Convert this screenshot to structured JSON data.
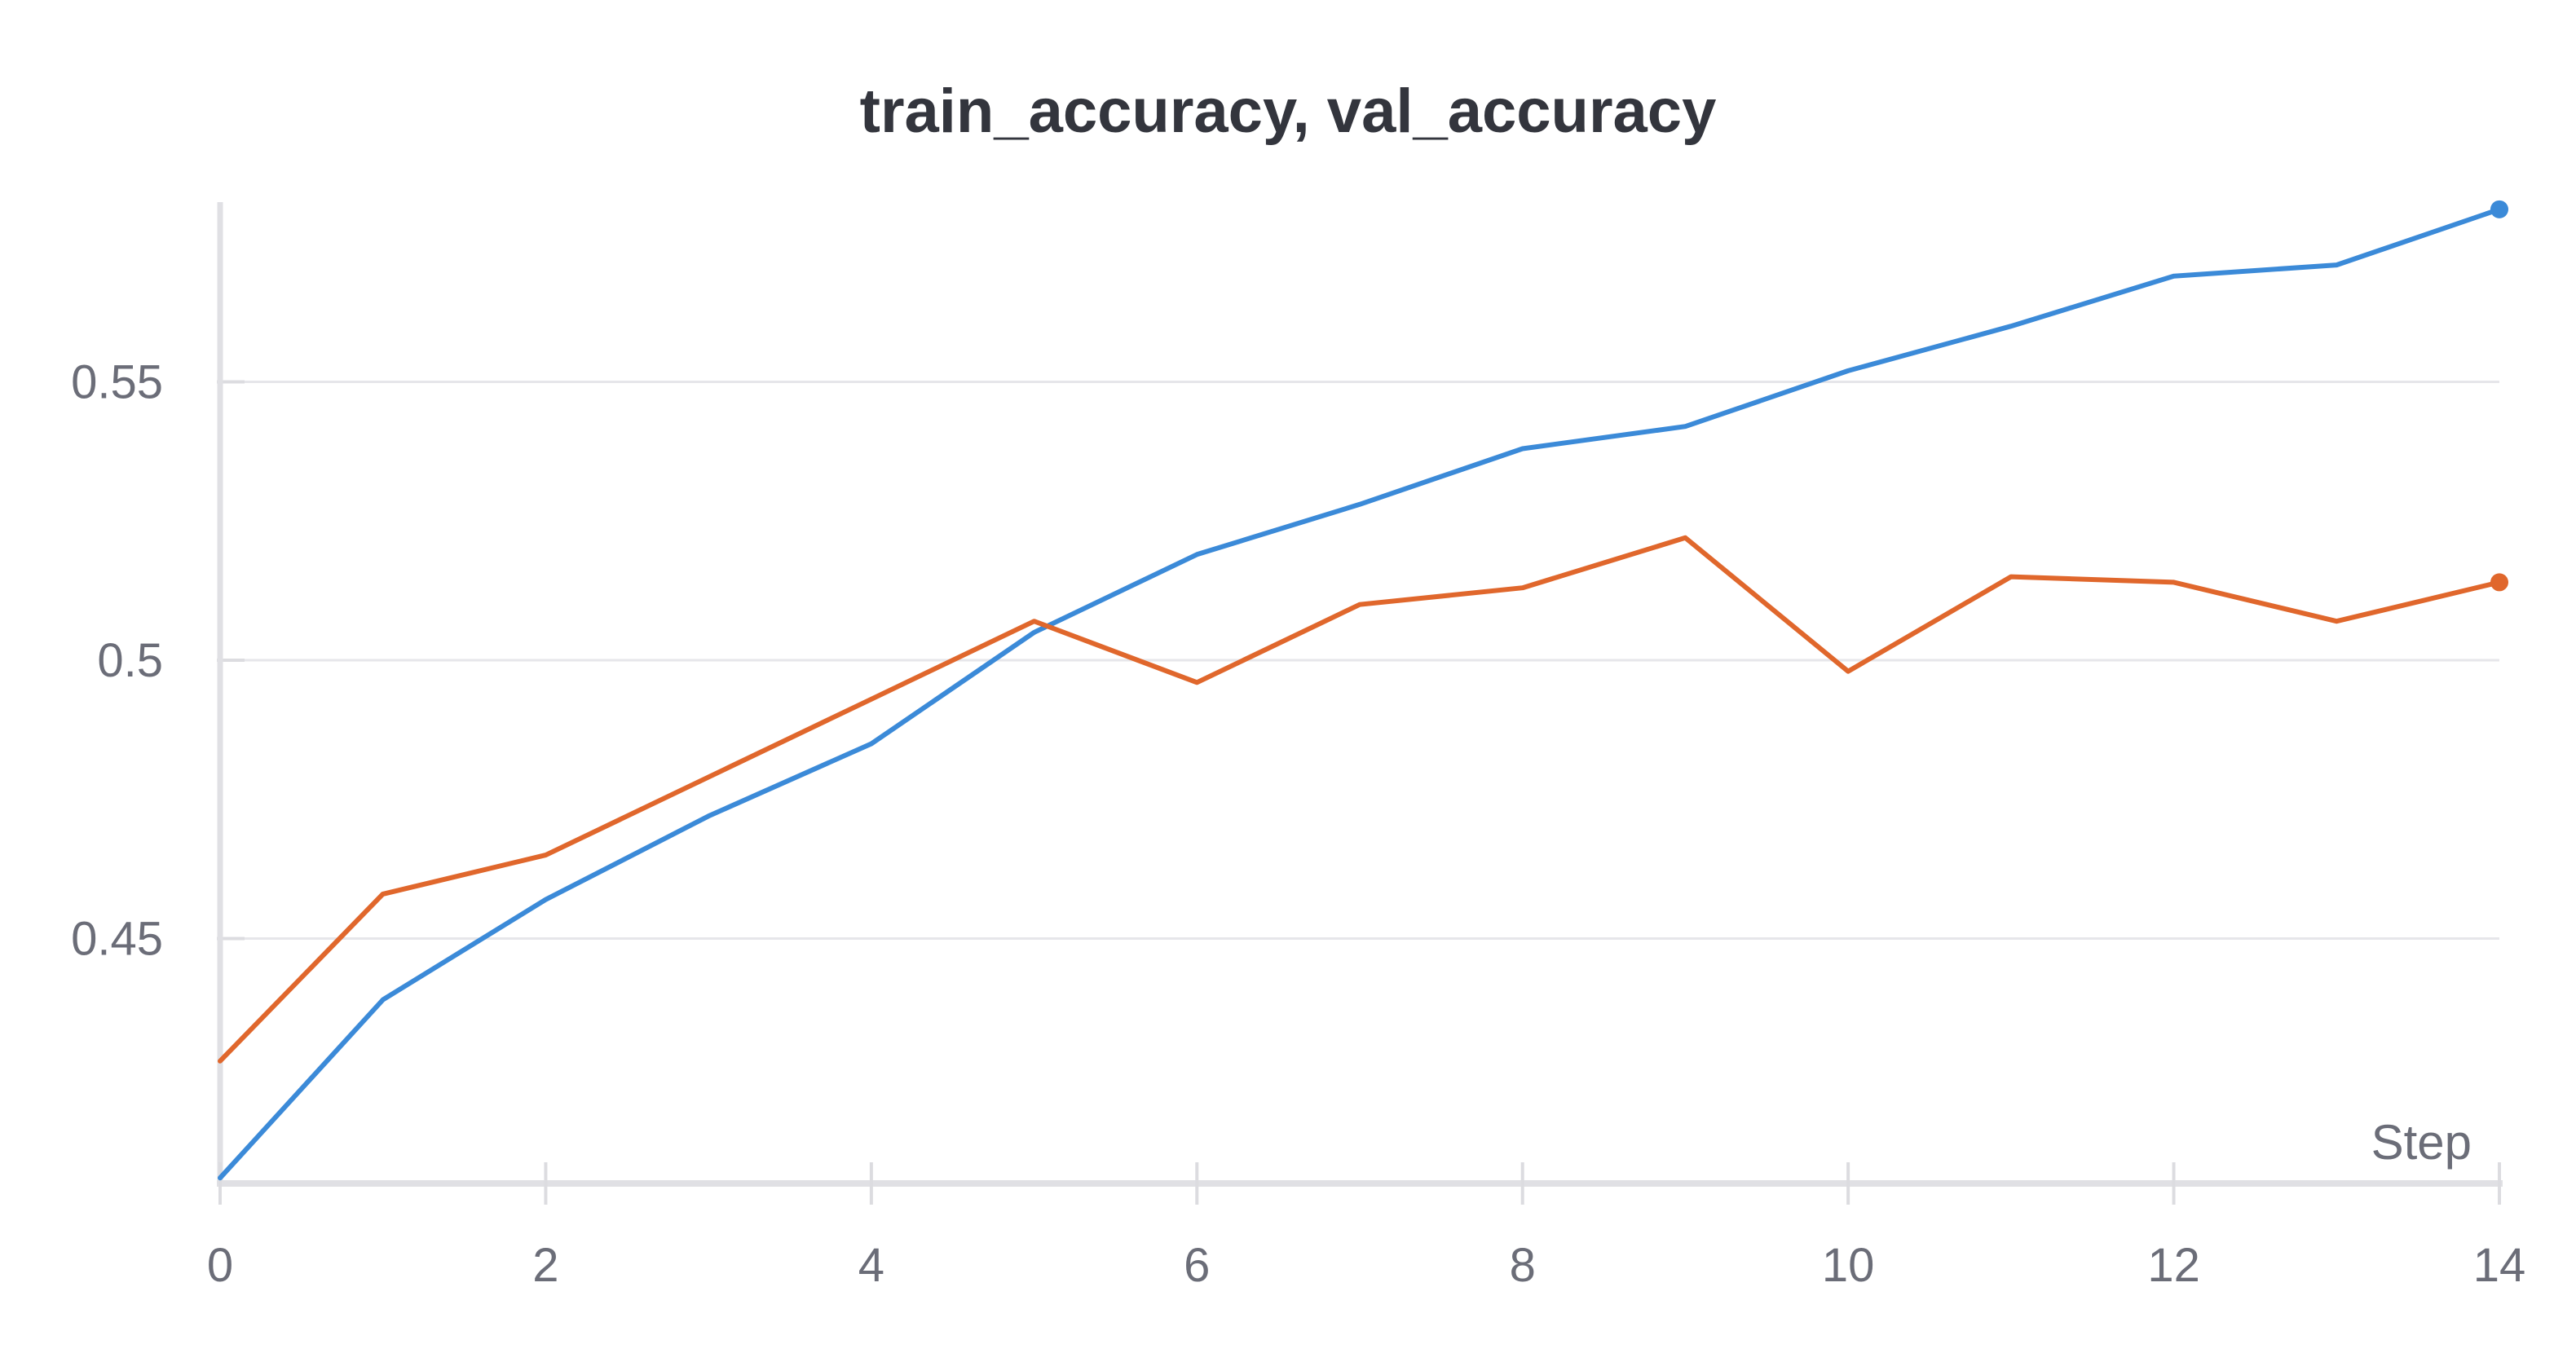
{
  "chart_data": {
    "type": "line",
    "title": "train_accuracy, val_accuracy",
    "xlabel": "Step",
    "ylabel": "",
    "xlim": [
      0,
      14
    ],
    "ylim": [
      0.406,
      0.582
    ],
    "x_ticks": [
      0,
      2,
      4,
      6,
      8,
      10,
      12,
      14
    ],
    "x_tick_labels": [
      "0",
      "2",
      "4",
      "6",
      "8",
      "10",
      "12",
      "14"
    ],
    "y_ticks": [
      0.45,
      0.5,
      0.55
    ],
    "y_tick_labels": [
      "0.45",
      "0.5",
      "0.55"
    ],
    "grid": true,
    "legend": "none",
    "x": [
      0,
      1,
      2,
      3,
      4,
      5,
      6,
      7,
      8,
      9,
      10,
      11,
      12,
      13,
      14
    ],
    "series": [
      {
        "color": "#3b8ad8",
        "values": [
          0.407,
          0.439,
          0.457,
          0.472,
          0.485,
          0.505,
          0.519,
          0.528,
          0.538,
          0.542,
          0.552,
          0.56,
          0.569,
          0.571,
          0.581
        ]
      },
      {
        "color": "#e0672c",
        "values": [
          0.428,
          0.458,
          0.465,
          0.479,
          0.493,
          0.507,
          0.496,
          0.51,
          0.513,
          0.522,
          0.498,
          0.515,
          0.514,
          0.507,
          0.514
        ]
      }
    ]
  }
}
